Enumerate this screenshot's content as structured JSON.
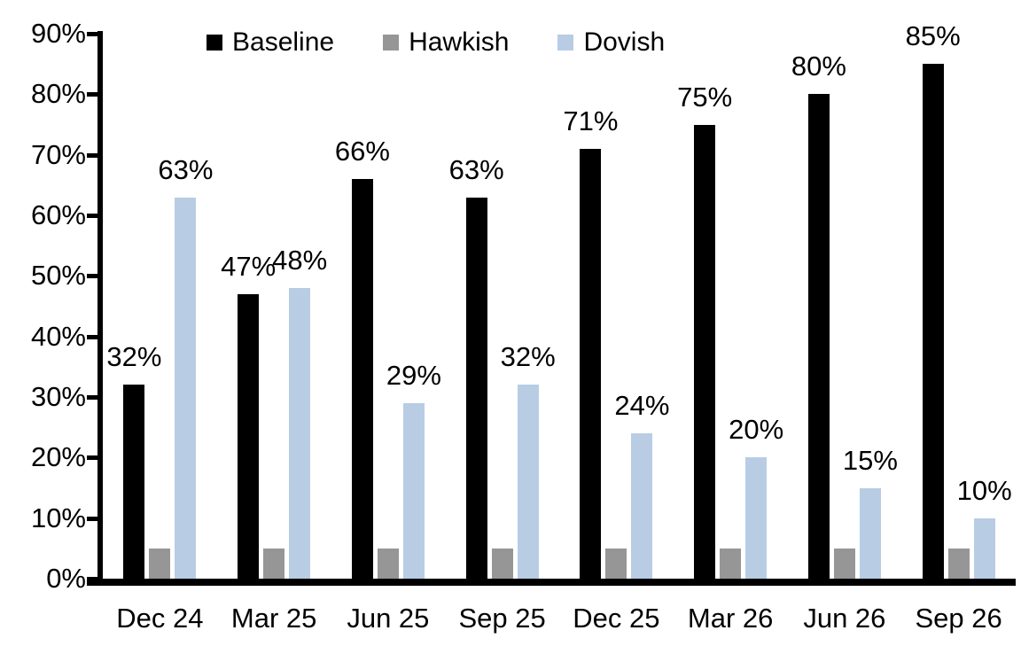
{
  "chart_data": {
    "type": "bar",
    "title": "",
    "xlabel": "",
    "ylabel": "",
    "categories": [
      "Dec 24",
      "Mar 25",
      "Jun 25",
      "Sep 25",
      "Dec 25",
      "Mar 26",
      "Jun 26",
      "Sep 26"
    ],
    "series": [
      {
        "name": "Baseline",
        "color": "#000000",
        "values": [
          32,
          47,
          66,
          63,
          71,
          75,
          80,
          85
        ],
        "labels_shown": true
      },
      {
        "name": "Hawkish",
        "color": "#969696",
        "values": [
          5,
          5,
          5,
          5,
          5,
          5,
          5,
          5
        ],
        "labels_shown": false
      },
      {
        "name": "Dovish",
        "color": "#B8CCE4",
        "values": [
          63,
          48,
          29,
          32,
          24,
          20,
          15,
          10
        ],
        "labels_shown": true
      }
    ],
    "ylim": [
      0,
      90
    ],
    "y_tick_step": 10,
    "y_tick_labels": [
      "0%",
      "10%",
      "20%",
      "30%",
      "40%",
      "50%",
      "60%",
      "70%",
      "80%",
      "90%"
    ],
    "data_label_suffix": "%",
    "legend_position": "top",
    "grid": false,
    "axis_color": "#000000",
    "background_color": "#ffffff"
  }
}
